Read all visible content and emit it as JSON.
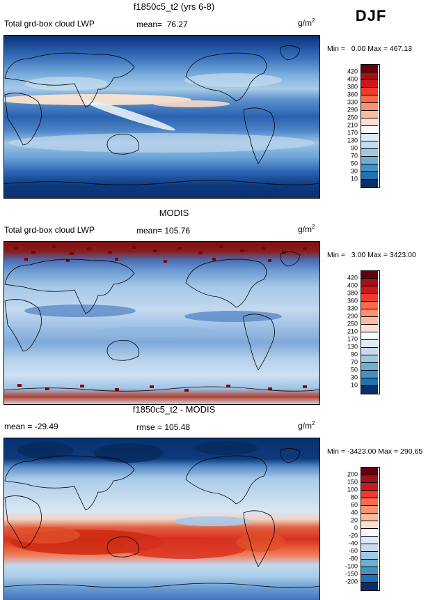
{
  "season_label": "DJF",
  "palette": [
    "#67000d",
    "#a50f15",
    "#cb181d",
    "#ef3b2c",
    "#fb6a4a",
    "#fc9272",
    "#fcbba1",
    "#fee0d2",
    "#f7fbff",
    "#deebf7",
    "#c6dbef",
    "#9ecae1",
    "#6baed6",
    "#4292c6",
    "#2171b5",
    "#08306b"
  ],
  "panels": [
    {
      "title": "f1850c5_t2 (yrs 6-8)",
      "stat_left": "Total grd-box cloud LWP",
      "stat_mid": "mean=  76.27",
      "units_base": "g/m",
      "units_exp": "2",
      "minmax": "Min =   0.00 Max = 467.13",
      "colorbar_ticks": [
        "420",
        "400",
        "380",
        "360",
        "330",
        "290",
        "250",
        "210",
        "170",
        "130",
        "90",
        "70",
        "50",
        "30",
        "10"
      ]
    },
    {
      "title": "MODIS",
      "stat_left": "Total grd-box cloud LWP",
      "stat_mid": "mean= 105.76",
      "units_base": "g/m",
      "units_exp": "2",
      "minmax": "Min =   3.00 Max = 3423.00",
      "colorbar_ticks": [
        "420",
        "400",
        "380",
        "360",
        "330",
        "290",
        "250",
        "210",
        "170",
        "130",
        "90",
        "70",
        "50",
        "30",
        "10"
      ]
    },
    {
      "title": "f1850c5_t2 - MODIS",
      "stat_left": "mean = -29.49",
      "stat_mid": "rmse = 105.48",
      "units_base": "g/m",
      "units_exp": "2",
      "minmax": "Min = -3423.00 Max = 290.65",
      "colorbar_ticks": [
        "200",
        "150",
        "100",
        "80",
        "60",
        "40",
        "20",
        "0",
        "-20",
        "-40",
        "-60",
        "-80",
        "-100",
        "-150",
        "-200"
      ]
    }
  ],
  "chart_data": [
    {
      "type": "heatmap",
      "title": "f1850c5_t2 (yrs 6-8)",
      "variable": "Total grd-box cloud LWP",
      "season": "DJF",
      "units": "g/m²",
      "mean": 76.27,
      "min": 0.0,
      "max": 467.13,
      "levels": [
        10,
        30,
        50,
        70,
        90,
        130,
        170,
        210,
        250,
        290,
        330,
        360,
        380,
        400,
        420
      ],
      "projection": "global lat-lon map",
      "legend_position": "right vertical colorbar"
    },
    {
      "type": "heatmap",
      "title": "MODIS",
      "variable": "Total grd-box cloud LWP",
      "season": "DJF",
      "units": "g/m²",
      "mean": 105.76,
      "min": 3.0,
      "max": 3423.0,
      "levels": [
        10,
        30,
        50,
        70,
        90,
        130,
        170,
        210,
        250,
        290,
        330,
        360,
        380,
        400,
        420
      ],
      "projection": "global lat-lon map",
      "legend_position": "right vertical colorbar"
    },
    {
      "type": "heatmap",
      "title": "f1850c5_t2 - MODIS",
      "variable": "Total grd-box cloud LWP difference",
      "season": "DJF",
      "units": "g/m²",
      "mean": -29.49,
      "rmse": 105.48,
      "min": -3423.0,
      "max": 290.65,
      "levels": [
        -200,
        -150,
        -100,
        -80,
        -60,
        -40,
        -20,
        0,
        20,
        40,
        60,
        80,
        100,
        150,
        200
      ],
      "projection": "global lat-lon map",
      "legend_position": "right vertical colorbar"
    }
  ]
}
